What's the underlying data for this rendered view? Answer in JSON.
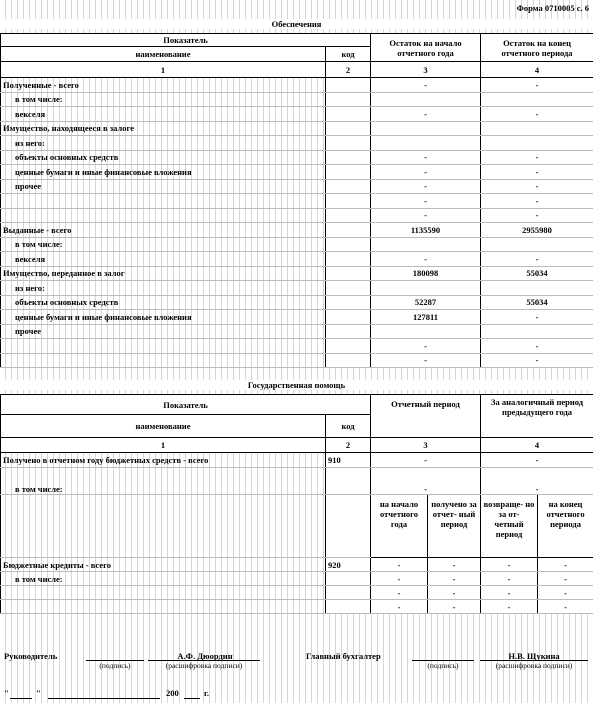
{
  "header": {
    "form": "Форма 0710005 с. 6"
  },
  "collateral": {
    "title": "Обеспечения",
    "columns": {
      "indicator": "Показатель",
      "name": "наименование",
      "code": "код",
      "start": "Остаток на начало отчетного года",
      "end": "Остаток на конец отчетного периода"
    },
    "column_numbers": [
      "1",
      "2",
      "3",
      "4"
    ],
    "rows": [
      {
        "name": "Полученные - всего",
        "start": "-",
        "end": "-"
      },
      {
        "name": "в том числе:"
      },
      {
        "name": "векселя",
        "start": "-",
        "end": "-"
      },
      {
        "name": "Имущество, находящееся в залоге"
      },
      {
        "name": "из него:"
      },
      {
        "name": "объекты основных средств",
        "start": "-",
        "end": "-"
      },
      {
        "name": "ценные бумаги и иные финансовые вложения",
        "start": "-",
        "end": "-"
      },
      {
        "name": "прочее",
        "start": "-",
        "end": "-"
      },
      {
        "start": "-",
        "end": "-"
      },
      {
        "start": "-",
        "end": "-"
      },
      {
        "name": "Выданные - всего",
        "start": 1135590,
        "end": 2955980
      },
      {
        "name": "в том числе:"
      },
      {
        "name": "векселя",
        "start": "-",
        "end": "-"
      },
      {
        "name": "Имущество, переданное в залог",
        "start": 180098,
        "end": 55034
      },
      {
        "name": "из него:"
      },
      {
        "name": "объекты основных средств",
        "start": 52287,
        "end": 55034
      },
      {
        "name": "ценные бумаги и иные финансовые вложения",
        "start": 127811,
        "end": "-"
      },
      {
        "name": "прочее"
      },
      {
        "start": "-",
        "end": "-"
      },
      {
        "start": "-",
        "end": "-"
      }
    ]
  },
  "state_aid": {
    "title": "Государственная помощь",
    "columns": {
      "indicator": "Показатель",
      "name": "наименование",
      "code": "код",
      "period": "Отчетный период",
      "prev": "За аналогичный период предыдущего года"
    },
    "column_numbers": [
      "1",
      "2",
      "3",
      "4"
    ],
    "funds_rows": [
      {
        "name": "Получено в отчетном году бюджетных средств - всего",
        "code": "910",
        "period": "-",
        "prev": "-"
      },
      {
        "name": "в том числе:",
        "period": "-",
        "prev": "-"
      }
    ],
    "sub_columns": [
      "на начало отчетного года",
      "получено за отчет- ный период",
      "возвраще- но за от- четный период",
      "на конец отчетного периода"
    ],
    "credit_rows": [
      {
        "name": "Бюджетные кредиты - всего",
        "code": "920",
        "values": [
          "-",
          "-",
          "-",
          "-"
        ]
      },
      {
        "name": "в том числе:",
        "values": [
          "-",
          "-",
          "-",
          "-"
        ]
      },
      {
        "values": [
          "-",
          "-",
          "-",
          "-"
        ]
      },
      {
        "values": [
          "-",
          "-",
          "-",
          "-"
        ]
      }
    ]
  },
  "footer": {
    "director_label": "Руководитель",
    "director_signature": "(подпись)",
    "director_name": "А.Ф. Дюордин",
    "director_decode": "(расшифровка подписи)",
    "accountant_label": "Главный бухгалтер",
    "accountant_signature": "(подпись)",
    "accountant_name": "Н.В. Щукина",
    "accountant_decode": "(расшифровка подписи)",
    "quote_open": "\"",
    "quote_close": "\"",
    "year": "200",
    "year_suffix": "г."
  }
}
